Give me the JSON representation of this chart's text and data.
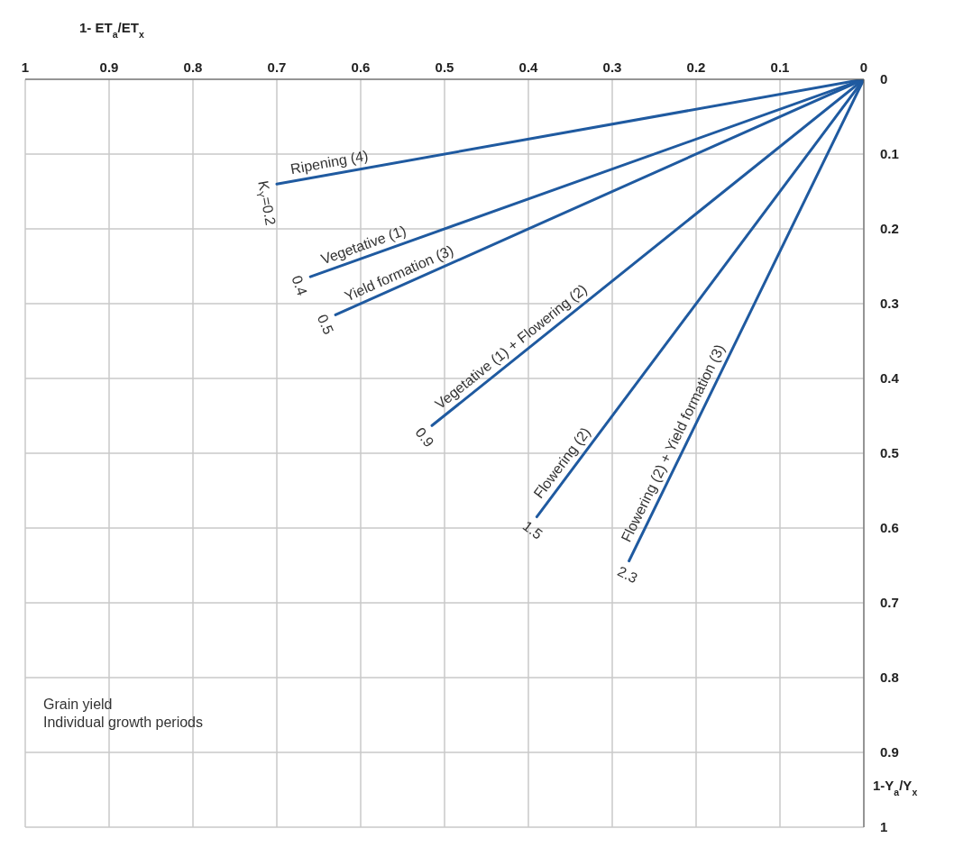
{
  "chart_data": {
    "type": "line",
    "xlabel": "1- ET$_{a}$/ET$_{x}$",
    "ylabel": "1-Y$_{a}$/Y$_{x}$",
    "xlim": [
      1,
      0
    ],
    "xticks": [
      1,
      0.9,
      0.8,
      0.7,
      0.6,
      0.5,
      0.4,
      0.3,
      0.2,
      0.1,
      0
    ],
    "ylim": [
      1,
      0
    ],
    "yticks": [
      0,
      0.1,
      0.2,
      0.3,
      0.4,
      0.5,
      0.6,
      0.7,
      0.8,
      0.9,
      1
    ],
    "grid": true,
    "marker": "none",
    "line_style": "solid",
    "series": [
      {
        "name": "Ripening (4)",
        "color": "#1f5aa0",
        "x": [
          0,
          0.7
        ],
        "values": [
          0,
          0.14
        ]
      },
      {
        "name": "Vegetative (1)",
        "color": "#1f5aa0",
        "x": [
          0,
          0.66
        ],
        "values": [
          0,
          0.264
        ]
      },
      {
        "name": "Yield formation (3)",
        "color": "#1f5aa0",
        "x": [
          0,
          0.63
        ],
        "values": [
          0,
          0.315
        ]
      },
      {
        "name": "Vegetative (1) + Flowering (2)",
        "color": "#1f5aa0",
        "x": [
          0,
          0.515
        ],
        "values": [
          0,
          0.463
        ]
      },
      {
        "name": "Flowering (2)",
        "color": "#1f5aa0",
        "x": [
          0,
          0.39
        ],
        "values": [
          0,
          0.585
        ]
      },
      {
        "name": "Flowering (2) + Yield formation (3)",
        "color": "#1f5aa0",
        "x": [
          0,
          0.28
        ],
        "values": [
          0,
          0.644
        ]
      }
    ],
    "annotations": [
      {
        "text": "K$_{Y}$=0.2",
        "x": 0.7,
        "y": 0.14
      },
      {
        "text": "0.4",
        "x": 0.66,
        "y": 0.264
      },
      {
        "text": "0.5",
        "x": 0.63,
        "y": 0.315
      },
      {
        "text": "0.9",
        "x": 0.515,
        "y": 0.463
      },
      {
        "text": "1.5",
        "x": 0.39,
        "y": 0.585
      },
      {
        "text": "2.3",
        "x": 0.28,
        "y": 0.644
      },
      "Grain yield",
      "Individual growth periods"
    ]
  }
}
